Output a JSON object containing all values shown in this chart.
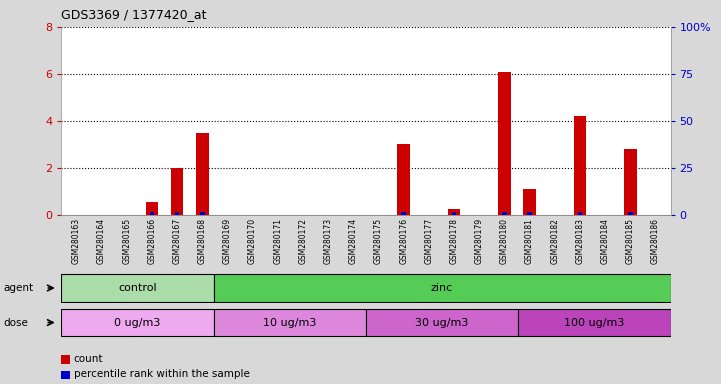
{
  "title": "GDS3369 / 1377420_at",
  "samples": [
    "GSM280163",
    "GSM280164",
    "GSM280165",
    "GSM280166",
    "GSM280167",
    "GSM280168",
    "GSM280169",
    "GSM280170",
    "GSM280171",
    "GSM280172",
    "GSM280173",
    "GSM280174",
    "GSM280175",
    "GSM280176",
    "GSM280177",
    "GSM280178",
    "GSM280179",
    "GSM280180",
    "GSM280181",
    "GSM280182",
    "GSM280183",
    "GSM280184",
    "GSM280185",
    "GSM280186"
  ],
  "count_values": [
    0,
    0,
    0,
    0.55,
    2.0,
    3.5,
    0,
    0,
    0,
    0,
    0,
    0,
    0,
    3.0,
    0,
    0.25,
    0,
    6.1,
    1.1,
    0,
    4.2,
    0,
    2.8,
    0
  ],
  "percentile_values": [
    0,
    0,
    0,
    7,
    7,
    7,
    0,
    0,
    0,
    0,
    0,
    0,
    0,
    7,
    0,
    4,
    0,
    7,
    7,
    0,
    7,
    0,
    7,
    0
  ],
  "ylim_left": [
    0,
    8
  ],
  "ylim_right": [
    0,
    100
  ],
  "yticks_left": [
    0,
    2,
    4,
    6,
    8
  ],
  "yticks_right": [
    0,
    25,
    50,
    75,
    100
  ],
  "bar_color": "#cc0000",
  "percentile_color": "#0000cc",
  "grid_color": "#000000",
  "agent_groups": [
    {
      "label": "control",
      "start": 0,
      "end": 5,
      "color": "#aaddaa"
    },
    {
      "label": "zinc",
      "start": 6,
      "end": 23,
      "color": "#55cc55"
    }
  ],
  "dose_groups": [
    {
      "label": "0 ug/m3",
      "start": 0,
      "end": 5,
      "color": "#eeaaee"
    },
    {
      "label": "10 ug/m3",
      "start": 6,
      "end": 11,
      "color": "#dd88dd"
    },
    {
      "label": "30 ug/m3",
      "start": 12,
      "end": 17,
      "color": "#cc66cc"
    },
    {
      "label": "100 ug/m3",
      "start": 18,
      "end": 23,
      "color": "#bb44bb"
    }
  ],
  "bg_color": "#d8d8d8",
  "xticklabel_bg": "#c8c8c8",
  "plot_bg": "#ffffff",
  "left_axis_color": "#cc0000",
  "right_axis_color": "#0000cc",
  "agent_label_color": "#008800",
  "dose_label_color": "#880088"
}
